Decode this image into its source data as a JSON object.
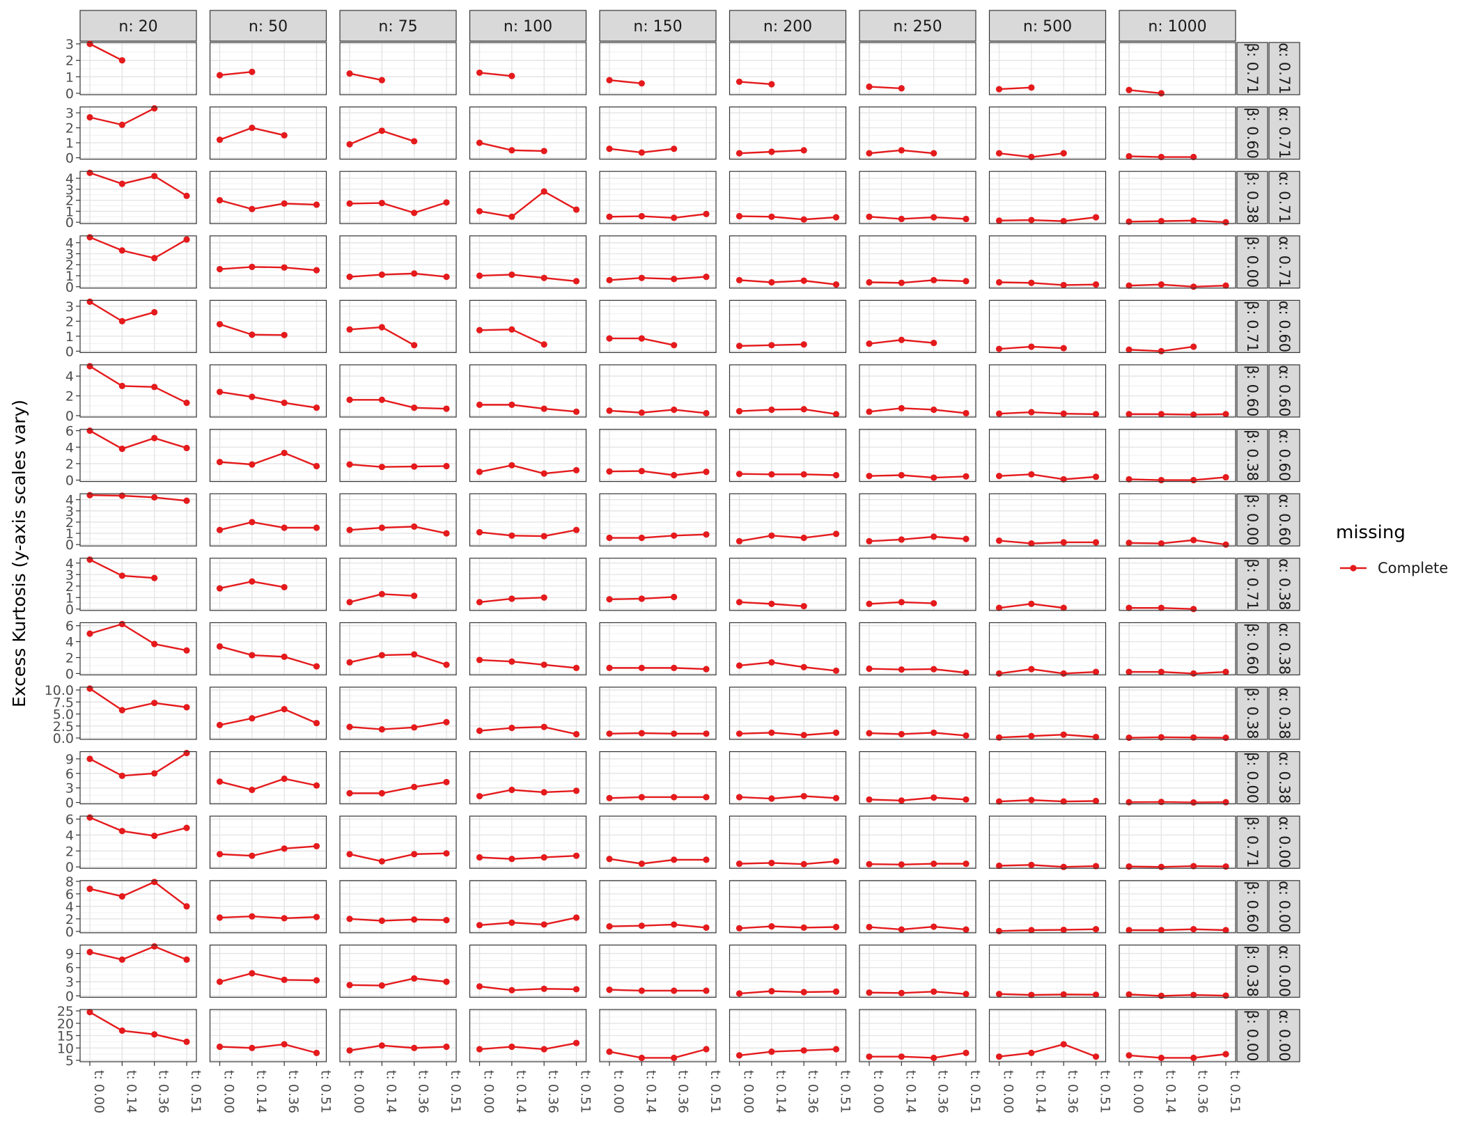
{
  "chart_data": {
    "type": "line",
    "facet": "grid",
    "ylabel": "Excess Kurtosis (y-axis scales vary)",
    "xlabel": "",
    "x_categories": [
      "t: 0.00",
      "t: 0.14",
      "t: 0.36",
      "t: 0.51"
    ],
    "col_strips": [
      "n: 20",
      "n: 50",
      "n: 75",
      "n: 100",
      "n: 150",
      "n: 200",
      "n: 250",
      "n: 500",
      "n: 1000"
    ],
    "legend": {
      "title": "missing",
      "items": [
        {
          "label": "Complete",
          "color": "#e41a1c"
        }
      ],
      "position": "right"
    },
    "grid": true,
    "series_color": "#e41a1c",
    "rows": [
      {
        "strip_beta": "β: 0.71",
        "strip_alpha": "α: 0.71",
        "ylim": [
          0,
          3.0
        ],
        "yticks": [
          0,
          1,
          2,
          3
        ],
        "yticklabels": [
          "0",
          "1",
          "2",
          "3"
        ],
        "values": [
          [
            3.0,
            2.0
          ],
          [
            1.1,
            1.3
          ],
          [
            1.2,
            0.8
          ],
          [
            1.25,
            1.05
          ],
          [
            0.8,
            0.6
          ],
          [
            0.7,
            0.55
          ],
          [
            0.4,
            0.3
          ],
          [
            0.25,
            0.35
          ],
          [
            0.2,
            0.0
          ]
        ]
      },
      {
        "strip_beta": "β: 0.60",
        "strip_alpha": "α: 0.71",
        "ylim": [
          0,
          3.3
        ],
        "yticks": [
          0,
          1,
          2,
          3
        ],
        "yticklabels": [
          "0",
          "1",
          "2",
          "3"
        ],
        "values": [
          [
            2.7,
            2.2,
            3.3
          ],
          [
            1.2,
            2.0,
            1.5
          ],
          [
            0.9,
            1.8,
            1.1
          ],
          [
            1.0,
            0.5,
            0.45
          ],
          [
            0.6,
            0.35,
            0.6
          ],
          [
            0.3,
            0.4,
            0.5
          ],
          [
            0.3,
            0.5,
            0.3
          ],
          [
            0.3,
            0.05,
            0.3
          ],
          [
            0.1,
            0.05,
            0.05
          ]
        ]
      },
      {
        "strip_beta": "β: 0.38",
        "strip_alpha": "α: 0.71",
        "ylim": [
          0,
          4.5
        ],
        "yticks": [
          0,
          1,
          2,
          3,
          4
        ],
        "yticklabels": [
          "0",
          "1",
          "2",
          "3",
          "4"
        ],
        "values": [
          [
            4.5,
            3.5,
            4.2,
            2.4
          ],
          [
            2.0,
            1.2,
            1.7,
            1.6
          ],
          [
            1.7,
            1.75,
            0.85,
            1.8
          ],
          [
            1.0,
            0.5,
            2.8,
            1.15
          ],
          [
            0.5,
            0.55,
            0.4,
            0.75
          ],
          [
            0.55,
            0.5,
            0.25,
            0.45
          ],
          [
            0.5,
            0.3,
            0.45,
            0.3
          ],
          [
            0.15,
            0.2,
            0.1,
            0.45
          ],
          [
            0.05,
            0.1,
            0.15,
            0.0
          ]
        ]
      },
      {
        "strip_beta": "β: 0.00",
        "strip_alpha": "α: 0.71",
        "ylim": [
          0,
          4.5
        ],
        "yticks": [
          0,
          1,
          2,
          3,
          4
        ],
        "yticklabels": [
          "0",
          "1",
          "2",
          "3",
          "4"
        ],
        "values": [
          [
            4.5,
            3.3,
            2.6,
            4.3
          ],
          [
            1.6,
            1.8,
            1.75,
            1.5
          ],
          [
            0.9,
            1.1,
            1.2,
            0.9
          ],
          [
            1.0,
            1.1,
            0.8,
            0.5
          ],
          [
            0.6,
            0.8,
            0.7,
            0.9
          ],
          [
            0.6,
            0.4,
            0.55,
            0.2
          ],
          [
            0.4,
            0.35,
            0.6,
            0.5
          ],
          [
            0.4,
            0.35,
            0.15,
            0.2
          ],
          [
            0.1,
            0.2,
            0.0,
            0.1
          ]
        ]
      },
      {
        "strip_beta": "β: 0.71",
        "strip_alpha": "α: 0.60",
        "ylim": [
          0,
          3.3
        ],
        "yticks": [
          0,
          1,
          2,
          3
        ],
        "yticklabels": [
          "0",
          "1",
          "2",
          "3"
        ],
        "values": [
          [
            3.3,
            2.0,
            2.6
          ],
          [
            1.8,
            1.1,
            1.08
          ],
          [
            1.45,
            1.6,
            0.4
          ],
          [
            1.4,
            1.45,
            0.45
          ],
          [
            0.85,
            0.85,
            0.4
          ],
          [
            0.35,
            0.4,
            0.45
          ],
          [
            0.5,
            0.75,
            0.55
          ],
          [
            0.15,
            0.3,
            0.2
          ],
          [
            0.1,
            0.0,
            0.3
          ]
        ]
      },
      {
        "strip_beta": "β: 0.60",
        "strip_alpha": "α: 0.60",
        "ylim": [
          0,
          5.0
        ],
        "yticks": [
          0,
          2,
          4
        ],
        "yticklabels": [
          "0",
          "2",
          "4"
        ],
        "values": [
          [
            5.0,
            3.0,
            2.9,
            1.3
          ],
          [
            2.4,
            1.9,
            1.3,
            0.8
          ],
          [
            1.6,
            1.6,
            0.8,
            0.7
          ],
          [
            1.1,
            1.1,
            0.7,
            0.4
          ],
          [
            0.5,
            0.3,
            0.6,
            0.25
          ],
          [
            0.45,
            0.6,
            0.65,
            0.15
          ],
          [
            0.4,
            0.75,
            0.6,
            0.25
          ],
          [
            0.2,
            0.35,
            0.2,
            0.15
          ],
          [
            0.15,
            0.15,
            0.1,
            0.15
          ]
        ]
      },
      {
        "strip_beta": "β: 0.38",
        "strip_alpha": "α: 0.60",
        "ylim": [
          0,
          6.0
        ],
        "yticks": [
          0,
          2,
          4,
          6
        ],
        "yticklabels": [
          "0",
          "2",
          "4",
          "6"
        ],
        "values": [
          [
            6.0,
            3.8,
            5.1,
            3.9
          ],
          [
            2.2,
            1.9,
            3.3,
            1.7
          ],
          [
            1.9,
            1.6,
            1.65,
            1.7
          ],
          [
            1.0,
            1.8,
            0.8,
            1.2
          ],
          [
            1.05,
            1.1,
            0.6,
            1.0
          ],
          [
            0.75,
            0.7,
            0.7,
            0.6
          ],
          [
            0.5,
            0.6,
            0.3,
            0.45
          ],
          [
            0.5,
            0.7,
            0.1,
            0.4
          ],
          [
            0.1,
            0.0,
            0.0,
            0.35
          ]
        ]
      },
      {
        "strip_beta": "β: 0.00",
        "strip_alpha": "α: 0.60",
        "ylim": [
          0,
          4.4
        ],
        "yticks": [
          0,
          1,
          2,
          3,
          4
        ],
        "yticklabels": [
          "0",
          "1",
          "2",
          "3",
          "4"
        ],
        "values": [
          [
            4.4,
            4.35,
            4.2,
            3.9
          ],
          [
            1.3,
            2.0,
            1.5,
            1.5
          ],
          [
            1.3,
            1.5,
            1.6,
            1.0
          ],
          [
            1.1,
            0.8,
            0.75,
            1.3
          ],
          [
            0.6,
            0.6,
            0.8,
            0.9
          ],
          [
            0.3,
            0.8,
            0.6,
            0.95
          ],
          [
            0.3,
            0.45,
            0.7,
            0.5
          ],
          [
            0.35,
            0.1,
            0.2,
            0.2
          ],
          [
            0.15,
            0.1,
            0.4,
            0.0
          ]
        ]
      },
      {
        "strip_beta": "β: 0.71",
        "strip_alpha": "α: 0.38",
        "ylim": [
          0,
          4.3
        ],
        "yticks": [
          0,
          1,
          2,
          3,
          4
        ],
        "yticklabels": [
          "0",
          "1",
          "2",
          "3",
          "4"
        ],
        "values": [
          [
            4.3,
            2.9,
            2.7
          ],
          [
            1.8,
            2.4,
            1.9
          ],
          [
            0.6,
            1.3,
            1.15
          ],
          [
            0.6,
            0.9,
            1.0
          ],
          [
            0.85,
            0.9,
            1.05
          ],
          [
            0.6,
            0.45,
            0.25
          ],
          [
            0.45,
            0.6,
            0.5
          ],
          [
            0.1,
            0.45,
            0.1
          ],
          [
            0.1,
            0.1,
            0.0
          ]
        ]
      },
      {
        "strip_beta": "β: 0.60",
        "strip_alpha": "α: 0.38",
        "ylim": [
          0,
          6.2
        ],
        "yticks": [
          0,
          2,
          4,
          6
        ],
        "yticklabels": [
          "0",
          "2",
          "4",
          "6"
        ],
        "values": [
          [
            5.0,
            6.2,
            3.7,
            2.9
          ],
          [
            3.4,
            2.3,
            2.1,
            0.9
          ],
          [
            1.4,
            2.3,
            2.4,
            1.1
          ],
          [
            1.7,
            1.5,
            1.1,
            0.7
          ],
          [
            0.7,
            0.7,
            0.7,
            0.55
          ],
          [
            1.0,
            1.4,
            0.8,
            0.35
          ],
          [
            0.6,
            0.5,
            0.55,
            0.1
          ],
          [
            0.0,
            0.55,
            0.0,
            0.2
          ],
          [
            0.2,
            0.2,
            0.0,
            0.2
          ]
        ]
      },
      {
        "strip_beta": "β: 0.38",
        "strip_alpha": "α: 0.38",
        "ylim": [
          0,
          10.3
        ],
        "yticks": [
          0,
          2.5,
          5,
          7.5,
          10
        ],
        "yticklabels": [
          "0.0",
          "2.5",
          "5.0",
          "7.5",
          "10.0"
        ],
        "values": [
          [
            10.3,
            5.8,
            7.3,
            6.4
          ],
          [
            2.7,
            4.1,
            6.0,
            3.1
          ],
          [
            2.3,
            1.8,
            2.2,
            3.3
          ],
          [
            1.5,
            2.1,
            2.3,
            0.8
          ],
          [
            0.9,
            1.0,
            0.9,
            0.9
          ],
          [
            0.9,
            1.1,
            0.6,
            1.1
          ],
          [
            1.0,
            0.8,
            1.1,
            0.5
          ],
          [
            0.1,
            0.4,
            0.7,
            0.2
          ],
          [
            0.05,
            0.15,
            0.1,
            0.05
          ]
        ]
      },
      {
        "strip_beta": "β: 0.00",
        "strip_alpha": "α: 0.38",
        "ylim": [
          0,
          10.2
        ],
        "yticks": [
          0,
          3,
          6,
          9
        ],
        "yticklabels": [
          "0",
          "3",
          "6",
          "9"
        ],
        "values": [
          [
            9.0,
            5.5,
            6.0,
            10.2
          ],
          [
            4.3,
            2.6,
            4.9,
            3.5
          ],
          [
            1.9,
            1.9,
            3.2,
            4.2
          ],
          [
            1.3,
            2.6,
            2.1,
            2.4
          ],
          [
            0.9,
            1.1,
            1.1,
            1.1
          ],
          [
            1.1,
            0.8,
            1.3,
            0.9
          ],
          [
            0.6,
            0.4,
            1.0,
            0.6
          ],
          [
            0.2,
            0.5,
            0.2,
            0.3
          ],
          [
            0.05,
            0.1,
            0.0,
            0.05
          ]
        ]
      },
      {
        "strip_beta": "β: 0.71",
        "strip_alpha": "α: 0.00",
        "ylim": [
          0,
          6.2
        ],
        "yticks": [
          0,
          2,
          4,
          6
        ],
        "yticklabels": [
          "0",
          "2",
          "4",
          "6"
        ],
        "values": [
          [
            6.2,
            4.5,
            3.9,
            4.9
          ],
          [
            1.6,
            1.4,
            2.3,
            2.6
          ],
          [
            1.6,
            0.7,
            1.6,
            1.7
          ],
          [
            1.2,
            1.0,
            1.2,
            1.4
          ],
          [
            1.0,
            0.4,
            0.9,
            0.9
          ],
          [
            0.4,
            0.5,
            0.35,
            0.7
          ],
          [
            0.35,
            0.3,
            0.4,
            0.4
          ],
          [
            0.15,
            0.25,
            0.0,
            0.1
          ],
          [
            0.05,
            0.0,
            0.1,
            0.05
          ]
        ]
      },
      {
        "strip_beta": "β: 0.60",
        "strip_alpha": "α: 0.00",
        "ylim": [
          0,
          7.9
        ],
        "yticks": [
          0,
          2,
          4,
          6,
          8
        ],
        "yticklabels": [
          "0",
          "2",
          "4",
          "6",
          "8"
        ],
        "values": [
          [
            6.8,
            5.6,
            7.9,
            4.0
          ],
          [
            2.2,
            2.4,
            2.1,
            2.3
          ],
          [
            2.0,
            1.7,
            1.9,
            1.8
          ],
          [
            1.0,
            1.4,
            1.1,
            2.2
          ],
          [
            0.8,
            0.9,
            1.1,
            0.6
          ],
          [
            0.5,
            0.8,
            0.6,
            0.7
          ],
          [
            0.7,
            0.3,
            0.75,
            0.3
          ],
          [
            0.05,
            0.2,
            0.25,
            0.35
          ],
          [
            0.2,
            0.2,
            0.35,
            0.2
          ]
        ]
      },
      {
        "strip_beta": "β: 0.38",
        "strip_alpha": "α: 0.00",
        "ylim": [
          0,
          10.5
        ],
        "yticks": [
          0,
          3,
          6,
          9
        ],
        "yticklabels": [
          "0",
          "3",
          "6",
          "9"
        ],
        "values": [
          [
            9.3,
            7.7,
            10.5,
            7.7
          ],
          [
            3.0,
            4.8,
            3.4,
            3.3
          ],
          [
            2.3,
            2.2,
            3.7,
            3.0
          ],
          [
            2.0,
            1.2,
            1.5,
            1.4
          ],
          [
            1.3,
            1.1,
            1.1,
            1.1
          ],
          [
            0.5,
            1.0,
            0.8,
            0.9
          ],
          [
            0.7,
            0.6,
            0.9,
            0.4
          ],
          [
            0.4,
            0.2,
            0.3,
            0.25
          ],
          [
            0.3,
            0.0,
            0.2,
            0.05
          ]
        ]
      },
      {
        "strip_beta": "β: 0.00",
        "strip_alpha": "α: 0.00",
        "ylim": [
          5,
          25
        ],
        "yticks": [
          5,
          10,
          15,
          20,
          25
        ],
        "yticklabels": [
          "5",
          "10",
          "15",
          "20",
          "25"
        ],
        "values": [
          [
            24.5,
            17,
            15.5,
            12.5
          ],
          [
            10.5,
            10,
            11.5,
            8
          ],
          [
            9,
            11,
            10,
            10.5
          ],
          [
            9.5,
            10.5,
            9.5,
            12
          ],
          [
            8.5,
            6,
            6,
            9.5
          ],
          [
            7,
            8.5,
            9,
            9.5
          ],
          [
            6.5,
            6.5,
            6,
            8
          ],
          [
            6.5,
            8,
            11.5,
            6.5
          ],
          [
            7,
            6,
            6,
            7.5
          ]
        ]
      }
    ]
  }
}
